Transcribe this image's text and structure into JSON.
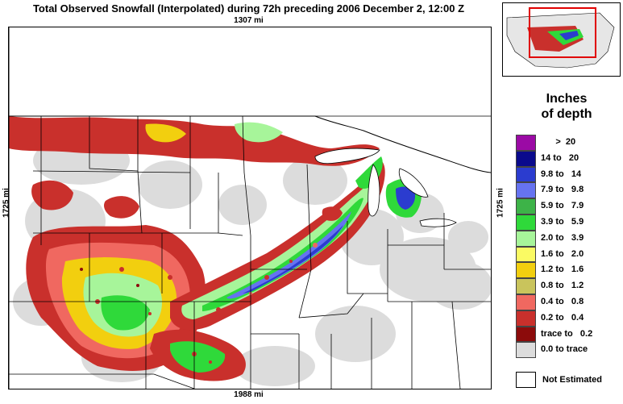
{
  "title": "Total Observed Snowfall (Interpolated) during 72h preceding 2006 December 2, 12:00 Z",
  "distances": {
    "top": "1307 mi",
    "bottom": "1988 mi",
    "left": "1725 mi",
    "right": "1725 mi"
  },
  "legend": {
    "title_line1": "Inches",
    "title_line2": "of depth",
    "items": [
      {
        "label": "      >  20",
        "color": "#9b0aa5"
      },
      {
        "label": "14 to   20",
        "color": "#0a0a8c"
      },
      {
        "label": "9.8 to   14",
        "color": "#2b3ccf"
      },
      {
        "label": "7.9 to   9.8",
        "color": "#6673f0"
      },
      {
        "label": "5.9 to   7.9",
        "color": "#3db348"
      },
      {
        "label": "3.9 to   5.9",
        "color": "#2fd93a"
      },
      {
        "label": "2.0 to   3.9",
        "color": "#a7f59a"
      },
      {
        "label": "1.6 to   2.0",
        "color": "#fafa63"
      },
      {
        "label": "1.2 to   1.6",
        "color": "#f2cf0f"
      },
      {
        "label": "0.8 to   1.2",
        "color": "#c9c45c"
      },
      {
        "label": "0.4 to   0.8",
        "color": "#f06860"
      },
      {
        "label": "0.2 to   0.4",
        "color": "#c9302c"
      },
      {
        "label": "trace to   0.2",
        "color": "#8c0b0b"
      },
      {
        "label": "0.0 to trace",
        "color": "#dcdcdc"
      }
    ],
    "not_estimated": "Not Estimated"
  },
  "map": {
    "gray_color": "#dcdcdc",
    "state_line_color": "#000000"
  }
}
